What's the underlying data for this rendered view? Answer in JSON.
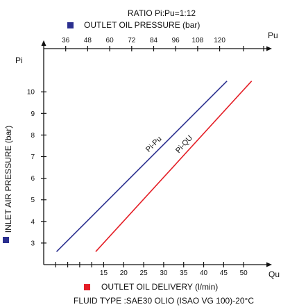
{
  "chart_data": {
    "type": "line",
    "title": "RATIO Pi:Pu=1:12",
    "footer": "FLUID TYPE :SAE30 OLIO (ISAO VG 100)-20°C",
    "axes": {
      "top": {
        "legend_label": "OUTLET OIL PRESSURE (bar)",
        "legend_color": "#2b2f8f",
        "unit_label": "Pu",
        "range": [
          24,
          144
        ],
        "ticks": [
          36,
          48,
          60,
          72,
          84,
          96,
          108,
          120
        ],
        "tick_labels": [
          "36",
          "48",
          "60",
          "72",
          "84",
          "96",
          "108",
          "120"
        ]
      },
      "bottom": {
        "legend_label": "OUTLET OIL DELIVERY (l/min)",
        "legend_color": "#e41e26",
        "unit_label": "Qu",
        "range": [
          0,
          55
        ],
        "ticks": [
          15,
          20,
          25,
          30,
          35,
          40,
          45,
          50
        ],
        "tick_labels": [
          "15",
          "20",
          "25",
          "30",
          "35",
          "40",
          "45",
          "50"
        ]
      },
      "left": {
        "label": "INLET AIR PRESSURE (bar)",
        "unit_label": "Pi",
        "legend_color": "#2b2f8f",
        "range": [
          2,
          12
        ],
        "ticks": [
          3,
          4,
          5,
          6,
          7,
          8,
          9,
          10
        ],
        "tick_labels": [
          "3",
          "4",
          "5",
          "6",
          "7",
          "8",
          "9",
          "10"
        ]
      }
    },
    "series": [
      {
        "name": "Pi-Pu",
        "color": "#2b2f8f",
        "axis": "top",
        "points": [
          [
            31,
            2.6
          ],
          [
            124,
            10.5
          ]
        ]
      },
      {
        "name": "Pi-QU",
        "color": "#e41e26",
        "axis": "bottom",
        "points": [
          [
            13,
            2.6
          ],
          [
            52,
            10.5
          ]
        ]
      }
    ]
  }
}
